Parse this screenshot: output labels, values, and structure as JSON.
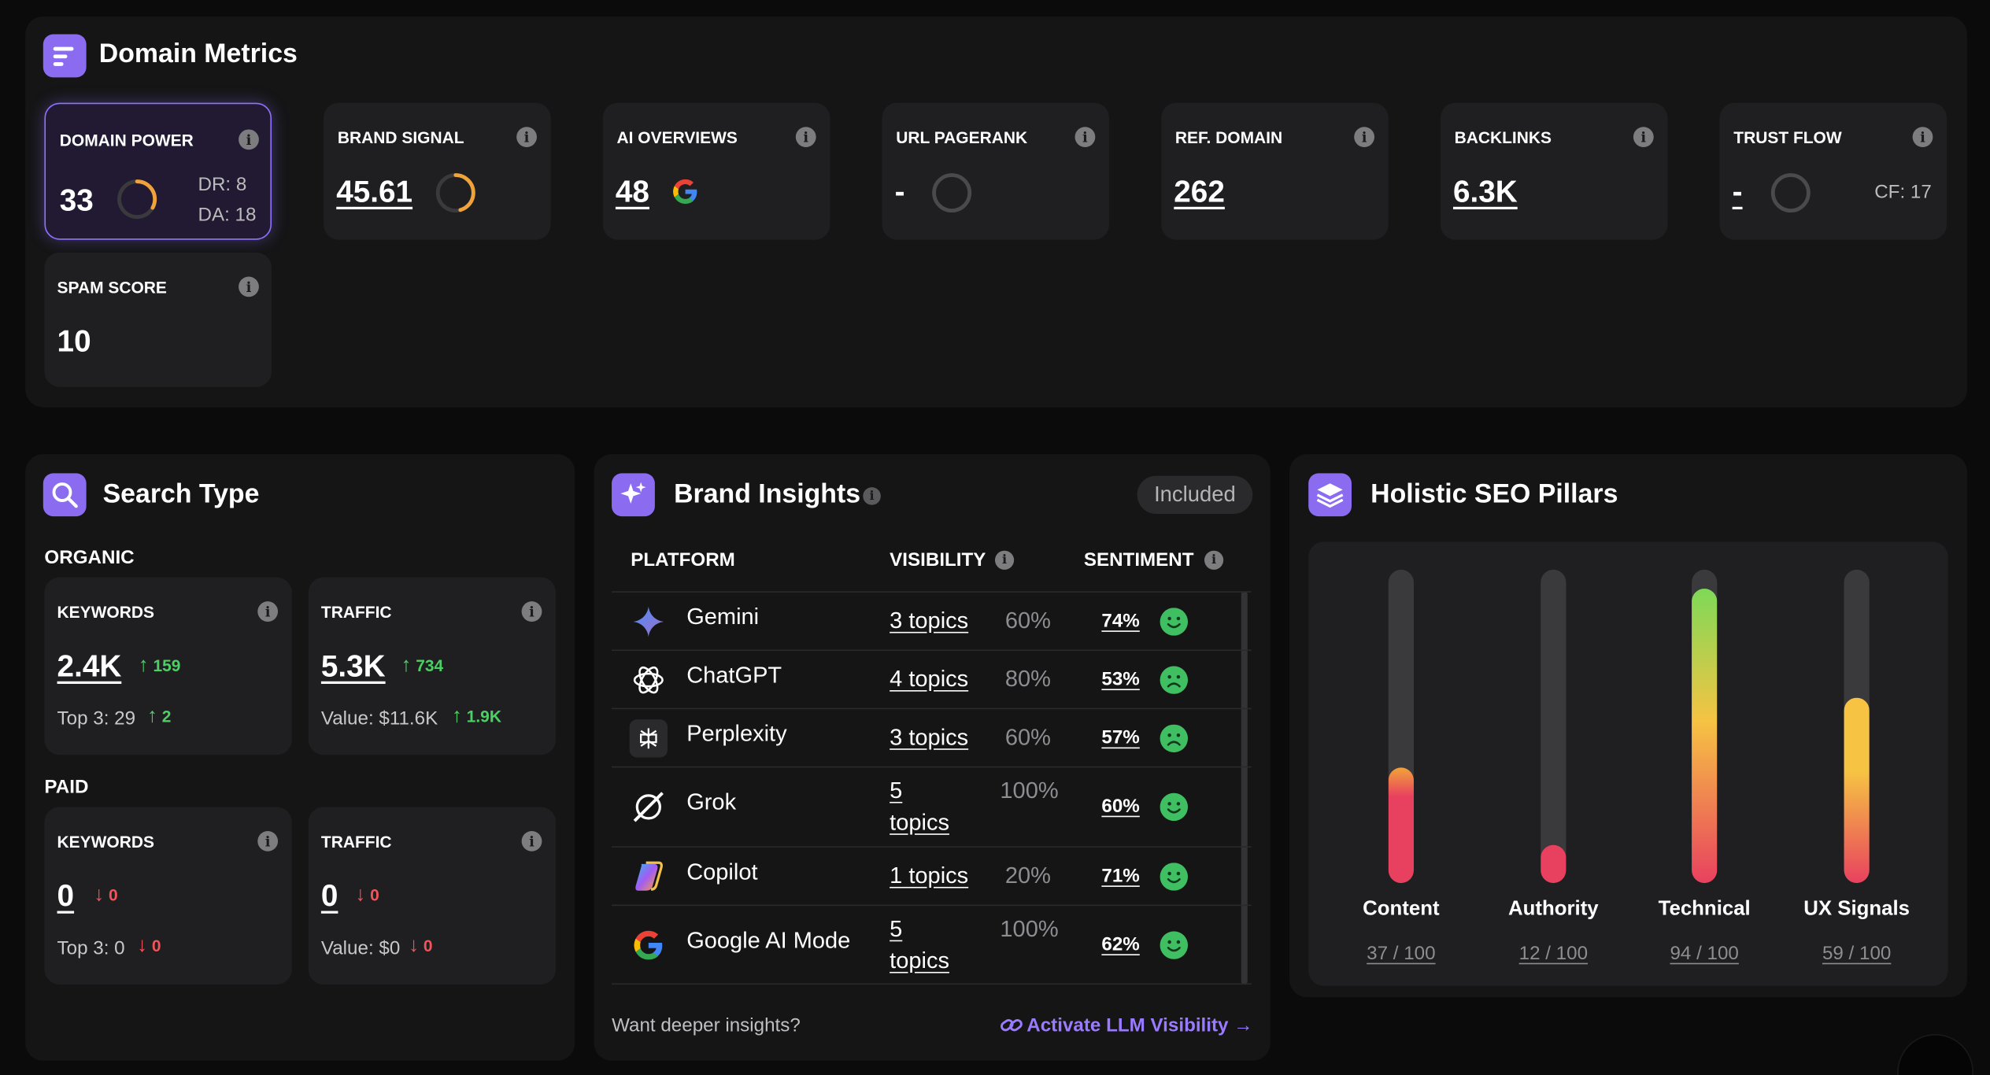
{
  "colors": {
    "accent": "#8b6cf0",
    "positive": "#4ccf64",
    "negative": "#f2545b",
    "link": "#9a7bff"
  },
  "domain_metrics": {
    "title": "Domain Metrics",
    "icon": "list-icon",
    "domain_power": {
      "label": "DOMAIN POWER",
      "value": "33",
      "dr": "DR: 8",
      "da": "DA: 18",
      "ring_fraction": 0.33
    },
    "brand_signal": {
      "label": "BRAND SIGNAL",
      "value": "45.61",
      "ring_fraction": 0.456
    },
    "ai_overviews": {
      "label": "AI OVERVIEWS",
      "value": "48",
      "icon": "google-icon"
    },
    "url_pagerank": {
      "label": "URL PAGERANK",
      "value": "-",
      "ring_fraction": 0
    },
    "ref_domain": {
      "label": "REF. DOMAIN",
      "value": "262"
    },
    "backlinks": {
      "label": "BACKLINKS",
      "value": "6.3K"
    },
    "trust_flow": {
      "label": "TRUST FLOW",
      "value": "-",
      "cf": "CF: 17",
      "ring_fraction": 0
    },
    "spam_score": {
      "label": "SPAM SCORE",
      "value": "10"
    }
  },
  "search_type": {
    "title": "Search Type",
    "icon": "search-icon",
    "organic": {
      "label": "ORGANIC",
      "keywords": {
        "label": "KEYWORDS",
        "value": "2.4K",
        "delta": "159",
        "sub": "Top 3: 29",
        "sub_delta": "2"
      },
      "traffic": {
        "label": "TRAFFIC",
        "value": "5.3K",
        "delta": "734",
        "sub": "Value: $11.6K",
        "sub_delta": "1.9K"
      }
    },
    "paid": {
      "label": "PAID",
      "keywords": {
        "label": "KEYWORDS",
        "value": "0",
        "delta": "0",
        "sub": "Top 3: 0",
        "sub_delta": "0"
      },
      "traffic": {
        "label": "TRAFFIC",
        "value": "0",
        "delta": "0",
        "sub": "Value: $0",
        "sub_delta": "0"
      }
    }
  },
  "brand_insights": {
    "title": "Brand Insights",
    "icon": "sparkle-icon",
    "badge": "Included",
    "columns": {
      "platform": "PLATFORM",
      "visibility": "VISIBILITY",
      "sentiment": "SENTIMENT"
    },
    "rows": [
      {
        "platform": "Gemini",
        "icon": "gemini-icon",
        "topics": "3 topics",
        "pct": "60%",
        "sentiment": "74%",
        "mood": "positive"
      },
      {
        "platform": "ChatGPT",
        "icon": "chatgpt-icon",
        "topics": "4 topics",
        "pct": "80%",
        "sentiment": "53%",
        "mood": "negative"
      },
      {
        "platform": "Perplexity",
        "icon": "perplexity-icon",
        "topics": "3 topics",
        "pct": "60%",
        "sentiment": "57%",
        "mood": "negative"
      },
      {
        "platform": "Grok",
        "icon": "grok-icon",
        "topics_line1": "5",
        "topics_line2": "topics",
        "pct": "100%",
        "sentiment": "60%",
        "mood": "positive"
      },
      {
        "platform": "Copilot",
        "icon": "copilot-icon",
        "topics": "1 topics",
        "pct": "20%",
        "sentiment": "71%",
        "mood": "positive"
      },
      {
        "platform": "Google AI Mode",
        "icon": "google-icon",
        "topics_line1": "5",
        "topics_line2": "topics",
        "pct": "100%",
        "sentiment": "62%",
        "mood": "positive"
      }
    ],
    "footer_question": "Want deeper insights?",
    "footer_link": "Activate LLM Visibility →"
  },
  "seo_pillars": {
    "title": "Holistic SEO Pillars",
    "icon": "layers-icon",
    "pillars": [
      {
        "name": "Content",
        "score": "37 / 100",
        "value": 37
      },
      {
        "name": "Authority",
        "score": "12 / 100",
        "value": 12
      },
      {
        "name": "Technical",
        "score": "94 / 100",
        "value": 94
      },
      {
        "name": "UX Signals",
        "score": "59 / 100",
        "value": 59
      }
    ]
  }
}
